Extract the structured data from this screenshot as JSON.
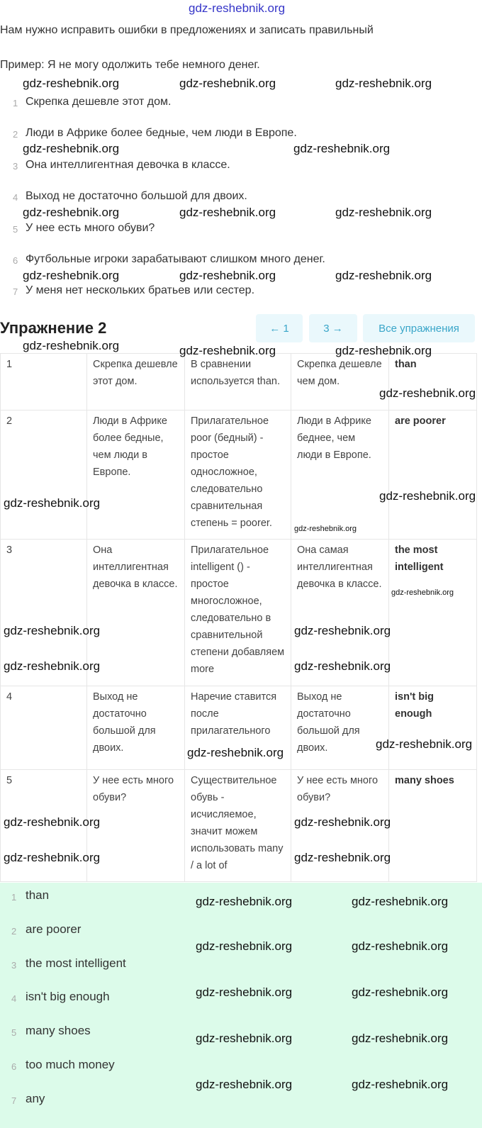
{
  "intro": "Нам нужно исправить ошибки в предложениях и записать правильный",
  "example": "Пример: Я не могу одолжить тебе немного денег.",
  "questions": [
    {
      "n": "1",
      "text": "Скрепка дешевле этот дом."
    },
    {
      "n": "2",
      "text": "Люди в Африке более бедные, чем люди в Европе."
    },
    {
      "n": "3",
      "text": "Она интеллигентная девочка в классе."
    },
    {
      "n": "4",
      "text": "Выход не достаточно большой для двоих."
    },
    {
      "n": "5",
      "text": "У нее есть много обуви?"
    },
    {
      "n": "6",
      "text": "Футбольные игроки зарабатывают слишком много денег."
    },
    {
      "n": "7",
      "text": "У меня нет нескольких братьев или сестер."
    }
  ],
  "exercise_title": "Упражнение 2",
  "nav": {
    "prev": "← 1",
    "next": "3 →",
    "all": "Все упражнения"
  },
  "table": [
    [
      "1",
      "Скрепка дешевле этот дом.",
      "В сравнении используется than.",
      "Скрепка дешевле чем дом.",
      "than"
    ],
    [
      "2",
      "Люди в Африке более бедные, чем люди в Европе.",
      "Прилагательное poor (бедный) - простое односложное, следовательно сравнительная степень = poorer.",
      "Люди в Африке беднее, чем люди в Европе.",
      "are poorer"
    ],
    [
      "3",
      "Она интеллигентная девочка в классе.",
      "Прилагательное intelligent () - простое многосложное, следовательно в сравнительной степени добавляем more",
      "Она самая интеллигентная девочка в классе.",
      "the most intelligent"
    ],
    [
      "4",
      "Выход не достаточно большой для двоих.",
      "Наречие ставится после прилагательного",
      "Выход не достаточно большой для двоих.",
      "isn't big enough"
    ],
    [
      "5",
      "У нее есть много обуви?",
      "Существительное обувь - исчисляемое, значит можем использовать many / a lot of",
      "У нее есть много обуви?",
      "many shoes"
    ]
  ],
  "answers": [
    {
      "n": "1",
      "text": "than"
    },
    {
      "n": "2",
      "text": "are poorer"
    },
    {
      "n": "3",
      "text": "the most intelligent"
    },
    {
      "n": "4",
      "text": "isn't big enough"
    },
    {
      "n": "5",
      "text": "many shoes"
    },
    {
      "n": "6",
      "text": "too much money"
    },
    {
      "n": "7",
      "text": "any"
    }
  ],
  "watermark": "gdz-reshebnik.org"
}
